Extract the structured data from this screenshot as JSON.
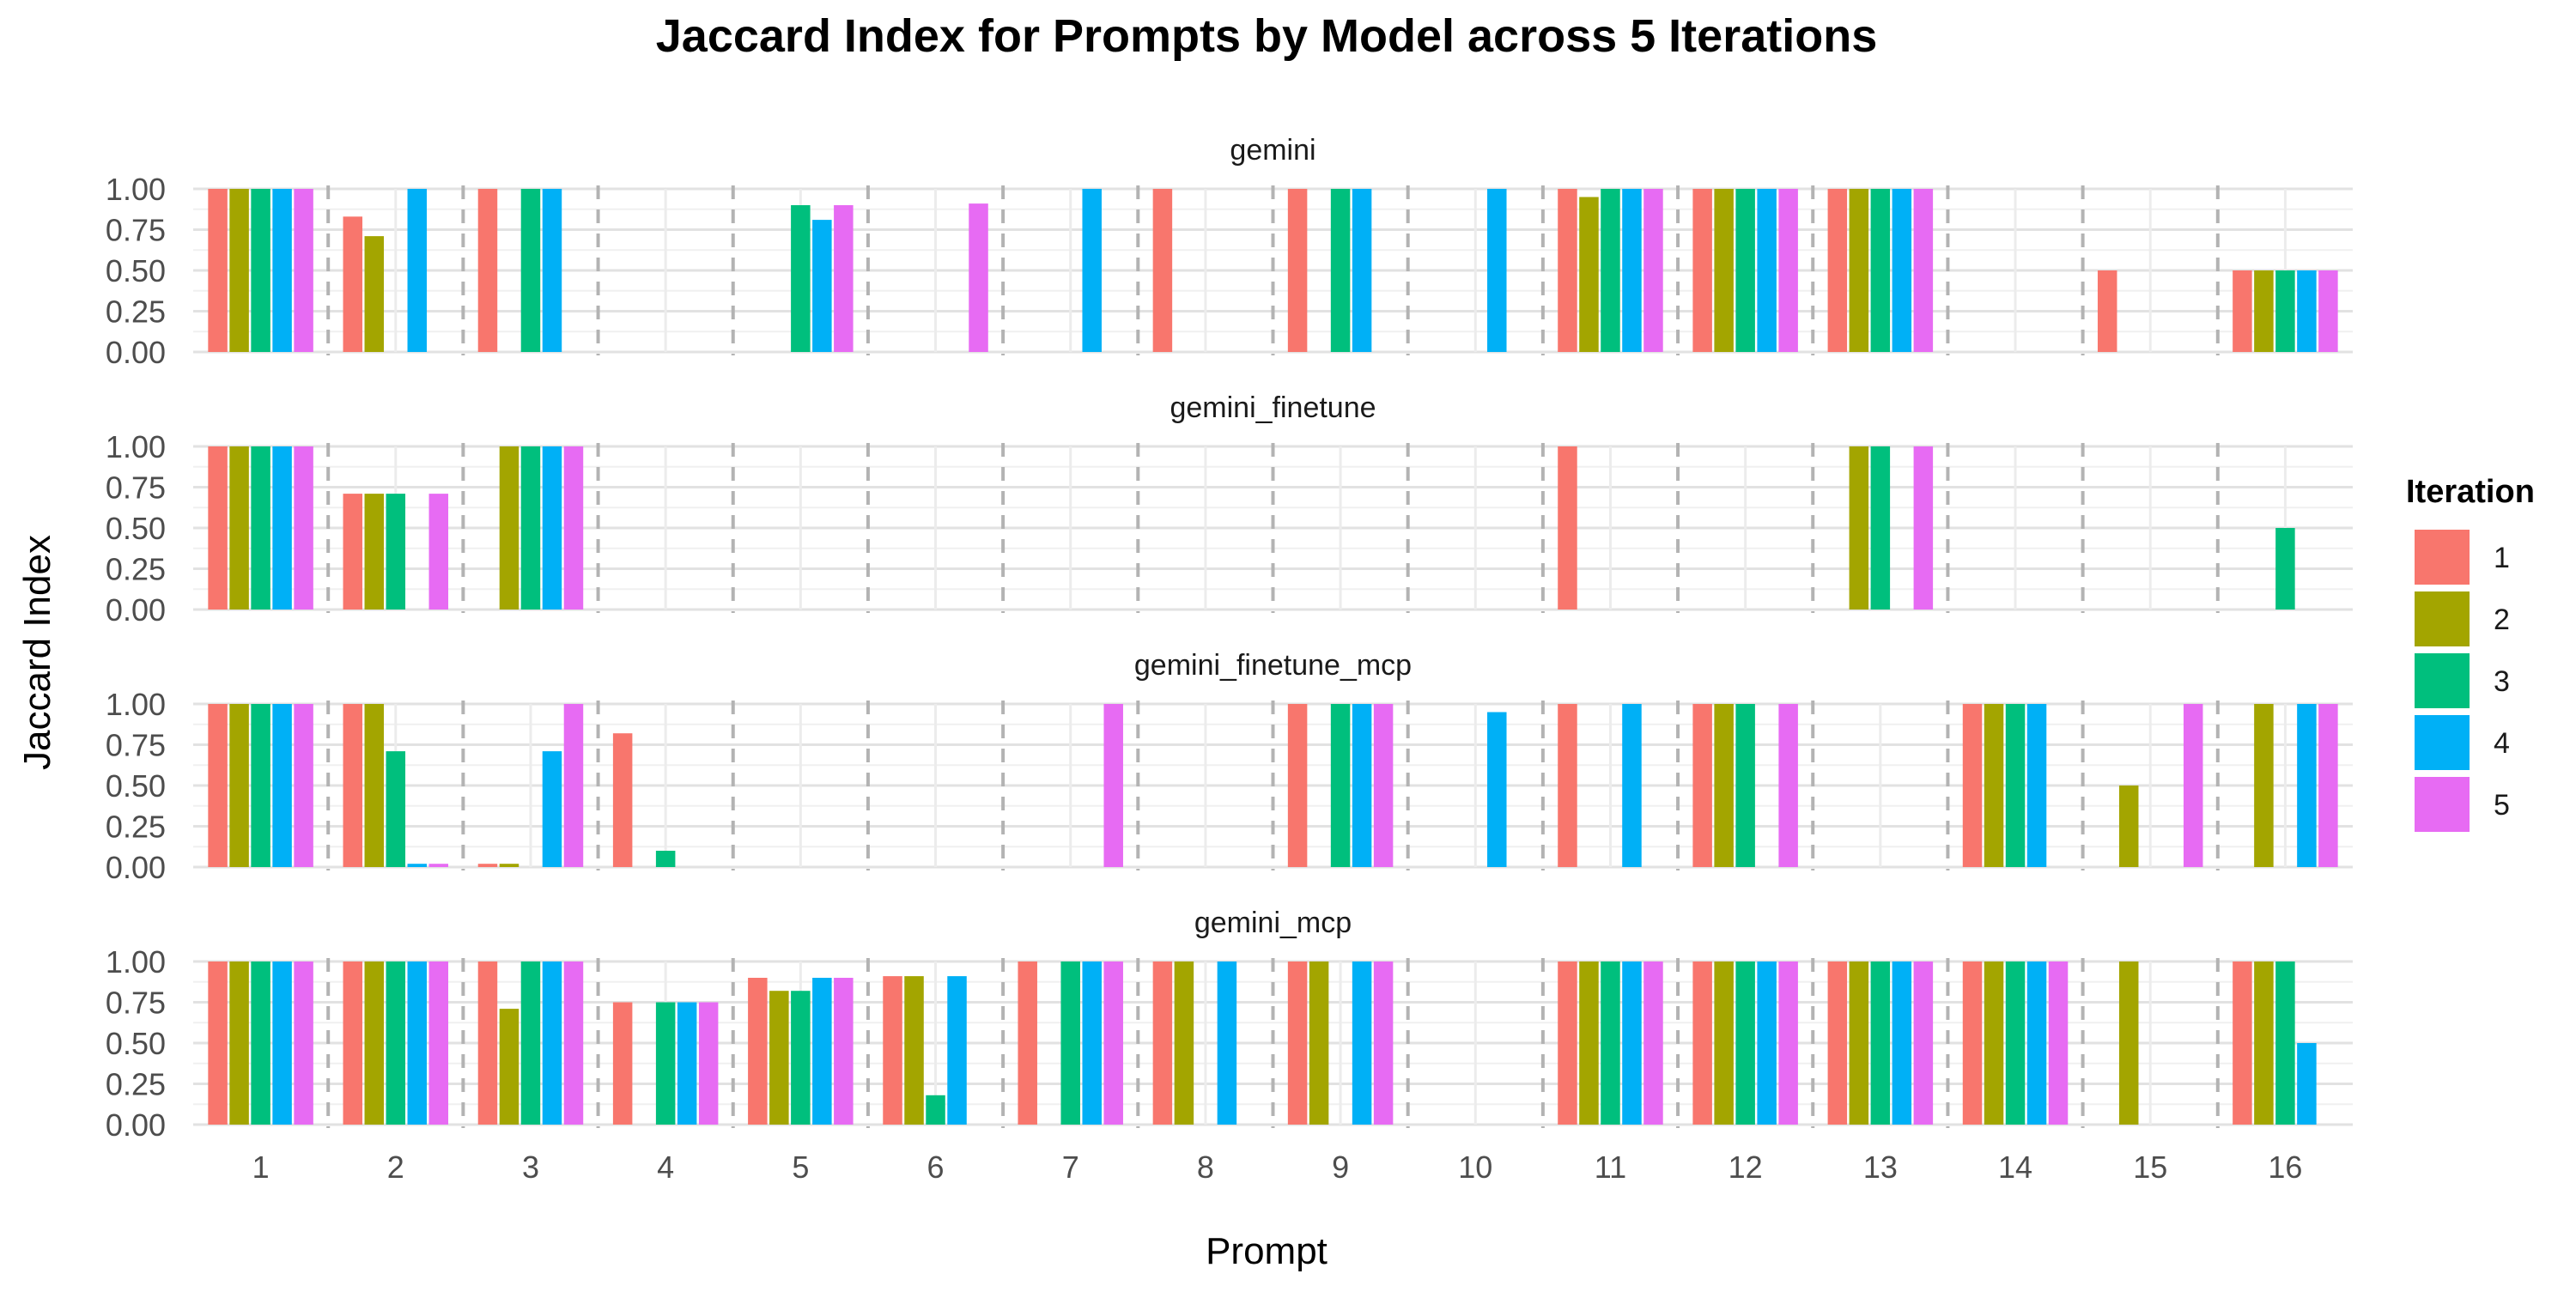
{
  "chart_data": {
    "type": "bar",
    "title": "Jaccard Index for Prompts by Model across 5 Iterations",
    "xlabel": "Prompt",
    "ylabel": "Jaccard Index",
    "categories": [
      "1",
      "2",
      "3",
      "4",
      "5",
      "6",
      "7",
      "8",
      "9",
      "10",
      "11",
      "12",
      "13",
      "14",
      "15",
      "16"
    ],
    "y_ticks": [
      "0.00",
      "0.25",
      "0.50",
      "0.75",
      "1.00"
    ],
    "ylim": [
      0,
      1
    ],
    "grid": true,
    "legend": {
      "title": "Iteration",
      "placement": "right",
      "items": [
        {
          "label": "1",
          "color": "#F8766D"
        },
        {
          "label": "2",
          "color": "#A3A500"
        },
        {
          "label": "3",
          "color": "#00BF7D"
        },
        {
          "label": "4",
          "color": "#00B0F6"
        },
        {
          "label": "5",
          "color": "#E76BF3"
        }
      ]
    },
    "panels": [
      {
        "name": "gemini",
        "values": [
          [
            1,
            1,
            1,
            1,
            1
          ],
          [
            0.83,
            0.71,
            0,
            1,
            0
          ],
          [
            1,
            0,
            1,
            1,
            0
          ],
          [
            0,
            0,
            0,
            0,
            0
          ],
          [
            0,
            0,
            0.9,
            0.81,
            0.9
          ],
          [
            0,
            0,
            0,
            0,
            0.91
          ],
          [
            0,
            0,
            0,
            1,
            0
          ],
          [
            1,
            0,
            0,
            0,
            0
          ],
          [
            1,
            0,
            1,
            1,
            0
          ],
          [
            0,
            0,
            0,
            1,
            0
          ],
          [
            1,
            0.95,
            1,
            1,
            1
          ],
          [
            1,
            1,
            1,
            1,
            1
          ],
          [
            1,
            1,
            1,
            1,
            1
          ],
          [
            0,
            0,
            0,
            0,
            0
          ],
          [
            0.5,
            0,
            0,
            0,
            0
          ],
          [
            0.5,
            0.5,
            0.5,
            0.5,
            0.5
          ]
        ]
      },
      {
        "name": "gemini_finetune",
        "values": [
          [
            1,
            1,
            1,
            1,
            1
          ],
          [
            0.71,
            0.71,
            0.71,
            0,
            0.71
          ],
          [
            0,
            1,
            1,
            1,
            1
          ],
          [
            0,
            0,
            0,
            0,
            0
          ],
          [
            0,
            0,
            0,
            0,
            0
          ],
          [
            0,
            0,
            0,
            0,
            0
          ],
          [
            0,
            0,
            0,
            0,
            0
          ],
          [
            0,
            0,
            0,
            0,
            0
          ],
          [
            0,
            0,
            0,
            0,
            0
          ],
          [
            0,
            0,
            0,
            0,
            0
          ],
          [
            1,
            0,
            0,
            0,
            0
          ],
          [
            0,
            0,
            0,
            0,
            0
          ],
          [
            0,
            1,
            1,
            0,
            1
          ],
          [
            0,
            0,
            0,
            0,
            0
          ],
          [
            0,
            0,
            0,
            0,
            0
          ],
          [
            0,
            0,
            0.5,
            0,
            0
          ]
        ]
      },
      {
        "name": "gemini_finetune_mcp",
        "values": [
          [
            1,
            1,
            1,
            1,
            1
          ],
          [
            1,
            1,
            0.71,
            0.02,
            0.02
          ],
          [
            0.02,
            0.02,
            0,
            0.71,
            1
          ],
          [
            0.82,
            0,
            0.1,
            0,
            0
          ],
          [
            0,
            0,
            0,
            0,
            0
          ],
          [
            0,
            0,
            0,
            0,
            0
          ],
          [
            0,
            0,
            0,
            0,
            1
          ],
          [
            0,
            0,
            0,
            0,
            0
          ],
          [
            1,
            0,
            1,
            1,
            1
          ],
          [
            0,
            0,
            0,
            0.95,
            0
          ],
          [
            1,
            0,
            0,
            1,
            0
          ],
          [
            1,
            1,
            1,
            0,
            1
          ],
          [
            0,
            0,
            0,
            0,
            0
          ],
          [
            1,
            1,
            1,
            1,
            0
          ],
          [
            0,
            0.5,
            0,
            0,
            1
          ],
          [
            0,
            1,
            0,
            1,
            1
          ]
        ]
      },
      {
        "name": "gemini_mcp",
        "values": [
          [
            1,
            1,
            1,
            1,
            1
          ],
          [
            1,
            1,
            1,
            1,
            1
          ],
          [
            1,
            0.71,
            1,
            1,
            1
          ],
          [
            0.75,
            0,
            0.75,
            0.75,
            0.75
          ],
          [
            0.9,
            0.82,
            0.82,
            0.9,
            0.9
          ],
          [
            0.91,
            0.91,
            0.18,
            0.91,
            0
          ],
          [
            1,
            0,
            1,
            1,
            1
          ],
          [
            1,
            1,
            0,
            1,
            0
          ],
          [
            1,
            1,
            0,
            1,
            1
          ],
          [
            0,
            0,
            0,
            0,
            0
          ],
          [
            1,
            1,
            1,
            1,
            1
          ],
          [
            1,
            1,
            1,
            1,
            1
          ],
          [
            1,
            1,
            1,
            1,
            1
          ],
          [
            1,
            1,
            1,
            1,
            1
          ],
          [
            0,
            1,
            0,
            0,
            0
          ],
          [
            1,
            1,
            1,
            0.5,
            0
          ]
        ]
      }
    ]
  }
}
